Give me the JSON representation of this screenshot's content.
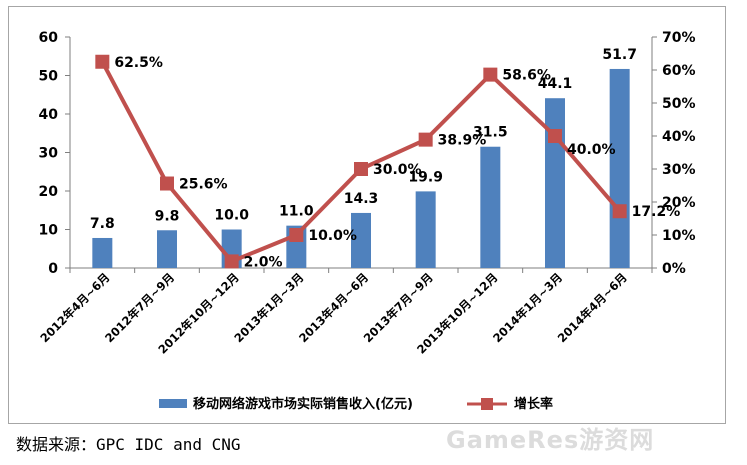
{
  "chart_data": {
    "type": "bar",
    "categories": [
      "2012年4月~6月",
      "2012年7月~9月",
      "2012年10月~12月",
      "2013年1月~3月",
      "2013年4月~6月",
      "2013年7月~9月",
      "2013年10月~12月",
      "2014年1月~3月",
      "2014年4月~6月"
    ],
    "series": [
      {
        "name": "移动网络游戏市场实际销售收入(亿元)",
        "type": "bar",
        "axis": "left",
        "color": "#4f81bd",
        "values": [
          7.8,
          9.8,
          10.0,
          11.0,
          14.3,
          19.9,
          31.5,
          44.1,
          51.7
        ],
        "labels": [
          "7.8",
          "9.8",
          "10.0",
          "11.0",
          "14.3",
          "19.9",
          "31.5",
          "44.1",
          "51.7"
        ]
      },
      {
        "name": "增长率",
        "type": "line",
        "axis": "right",
        "color": "#c0504d",
        "values": [
          62.5,
          25.6,
          2.0,
          10.0,
          30.0,
          38.9,
          58.6,
          40.0,
          17.2
        ],
        "labels": [
          "62.5%",
          "25.6%",
          "2.0%",
          "10.0%",
          "30.0%",
          "38.9%",
          "58.6%",
          "40.0%",
          "17.2%"
        ]
      }
    ],
    "y_left": {
      "min": 0,
      "max": 60,
      "ticks": [
        "0",
        "10",
        "20",
        "30",
        "40",
        "50",
        "60"
      ]
    },
    "y_right": {
      "min": 0,
      "max": 70,
      "ticks": [
        "0%",
        "10%",
        "20%",
        "30%",
        "40%",
        "50%",
        "60%",
        "70%"
      ]
    },
    "grid": false,
    "legend_position": "bottom",
    "title": ""
  },
  "source": "数据来源：GPC IDC and CNG",
  "watermark": "GameRes游资网"
}
